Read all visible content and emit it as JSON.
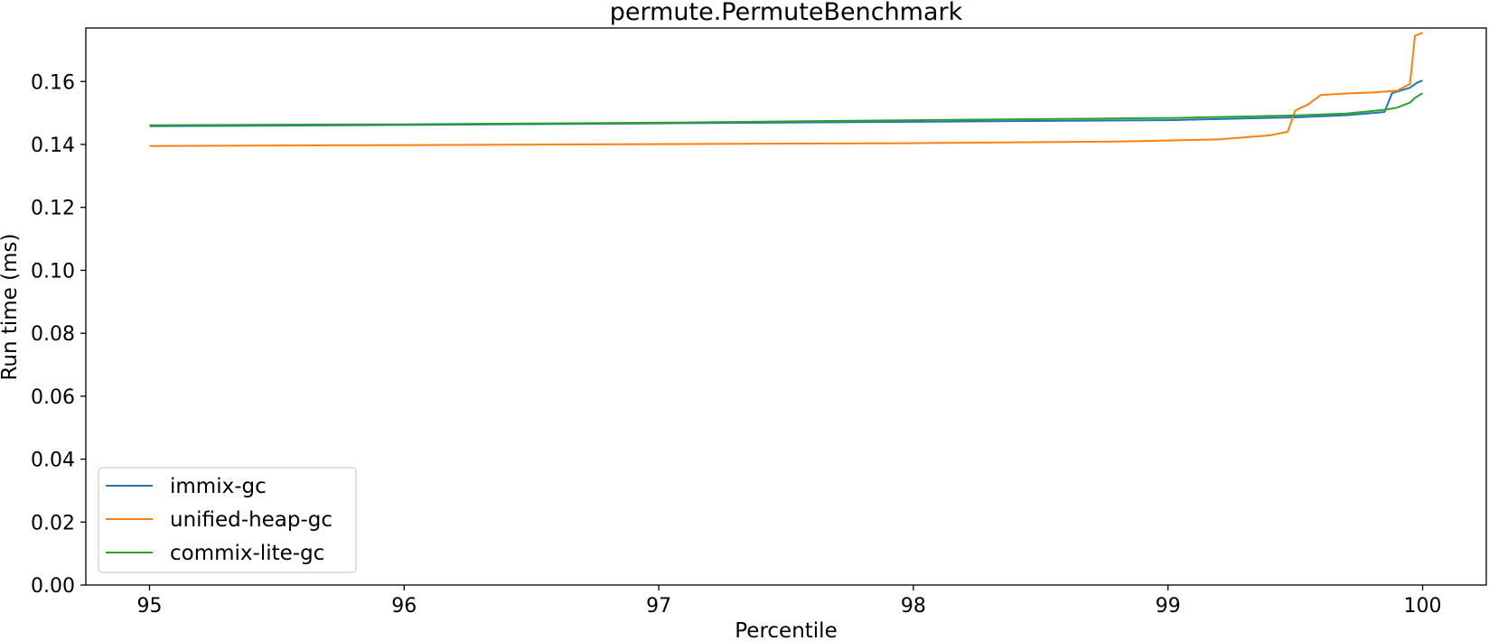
{
  "chart_data": {
    "type": "line",
    "title": "permute.PermuteBenchmark",
    "xlabel": "Percentile",
    "ylabel": "Run time (ms)",
    "xlim": [
      94.75,
      100.25
    ],
    "ylim": [
      0.0,
      0.177
    ],
    "xticks": [
      95,
      96,
      97,
      98,
      99,
      100
    ],
    "xtick_labels": [
      "95",
      "96",
      "97",
      "98",
      "99",
      "100"
    ],
    "yticks": [
      0.0,
      0.02,
      0.04,
      0.06,
      0.08,
      0.1,
      0.12,
      0.14,
      0.16
    ],
    "ytick_labels": [
      "0.00",
      "0.02",
      "0.04",
      "0.06",
      "0.08",
      "0.10",
      "0.12",
      "0.14",
      "0.16"
    ],
    "grid": false,
    "legend_position": "lower-left",
    "series": [
      {
        "name": "immix-gc",
        "color": "#1f77b4",
        "x": [
          95.0,
          96.0,
          97.0,
          98.0,
          99.0,
          99.5,
          99.7,
          99.85,
          99.88,
          99.9,
          99.95,
          99.98,
          100.0
        ],
        "y": [
          0.1458,
          0.1462,
          0.1467,
          0.1472,
          0.1477,
          0.1486,
          0.1493,
          0.1503,
          0.1563,
          0.1568,
          0.158,
          0.1597,
          0.1603
        ]
      },
      {
        "name": "unified-heap-gc",
        "color": "#ff7f0e",
        "x": [
          95.0,
          96.0,
          97.0,
          98.0,
          98.8,
          99.2,
          99.4,
          99.47,
          99.5,
          99.55,
          99.6,
          99.7,
          99.8,
          99.9,
          99.95,
          99.97,
          100.0
        ],
        "y": [
          0.1395,
          0.1398,
          0.1401,
          0.1404,
          0.1409,
          0.1416,
          0.1429,
          0.144,
          0.1508,
          0.1527,
          0.1557,
          0.1562,
          0.1565,
          0.1571,
          0.1592,
          0.1745,
          0.1755
        ]
      },
      {
        "name": "commix-lite-gc",
        "color": "#2ca02c",
        "x": [
          95.0,
          96.0,
          97.0,
          98.0,
          99.0,
          99.5,
          99.7,
          99.85,
          99.9,
          99.95,
          99.97,
          100.0
        ],
        "y": [
          0.1461,
          0.1464,
          0.1469,
          0.1477,
          0.1484,
          0.1492,
          0.1498,
          0.151,
          0.1517,
          0.1533,
          0.1548,
          0.1563
        ]
      }
    ]
  }
}
